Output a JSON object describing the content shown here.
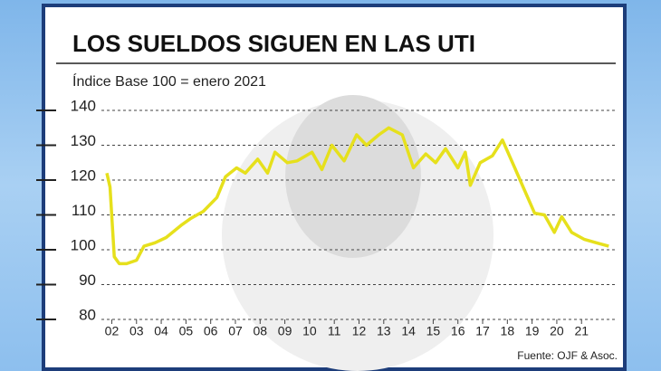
{
  "chart_data": {
    "type": "line",
    "title": "LOS SUELDOS SIGUEN EN LAS UTI",
    "subtitle": "Índice Base 100 = enero 2021",
    "source": "Fuente: OJF & Asoc.",
    "x": [
      1.8,
      1.93,
      2.1,
      2.3,
      2.6,
      3.0,
      3.3,
      3.75,
      4.2,
      4.8,
      5.2,
      5.7,
      6.25,
      6.6,
      7.05,
      7.4,
      7.9,
      8.3,
      8.6,
      9.1,
      9.5,
      10.1,
      10.5,
      10.9,
      11.4,
      11.9,
      12.3,
      12.8,
      13.2,
      13.75,
      14.2,
      14.7,
      15.1,
      15.5,
      16.0,
      16.3,
      16.5,
      16.9,
      17.4,
      17.8,
      18.3,
      18.7,
      19.1,
      19.5,
      19.9,
      20.2,
      20.6,
      21.1,
      21.6,
      22.1
    ],
    "series": [
      {
        "color": "#e6e01c",
        "values": [
          122,
          118,
          98,
          96,
          96,
          97,
          101,
          102,
          103.5,
          107,
          109,
          111,
          115,
          121,
          123.5,
          122,
          126,
          122,
          128,
          125,
          125.5,
          128,
          123,
          130,
          125.5,
          133,
          130,
          133,
          135,
          133,
          123.5,
          127.5,
          125,
          129,
          123.5,
          128,
          118.5,
          125,
          127,
          131.5,
          123.5,
          117,
          110.5,
          110,
          105,
          109.5,
          105,
          103,
          102,
          101
        ]
      }
    ],
    "xlim": [
      1.8,
      22.2
    ],
    "xticks": [
      {
        "value": 2,
        "label": "02"
      },
      {
        "value": 3,
        "label": "03"
      },
      {
        "value": 4,
        "label": "04"
      },
      {
        "value": 5,
        "label": "05"
      },
      {
        "value": 6,
        "label": "06"
      },
      {
        "value": 7,
        "label": "07"
      },
      {
        "value": 8,
        "label": "08"
      },
      {
        "value": 9,
        "label": "09"
      },
      10,
      11,
      12,
      13,
      14,
      15,
      16,
      17,
      18,
      19,
      20,
      21
    ],
    "ylim": [
      80,
      140
    ],
    "yticks": [
      80,
      90,
      100,
      110,
      120,
      130,
      140
    ],
    "grid": true
  }
}
